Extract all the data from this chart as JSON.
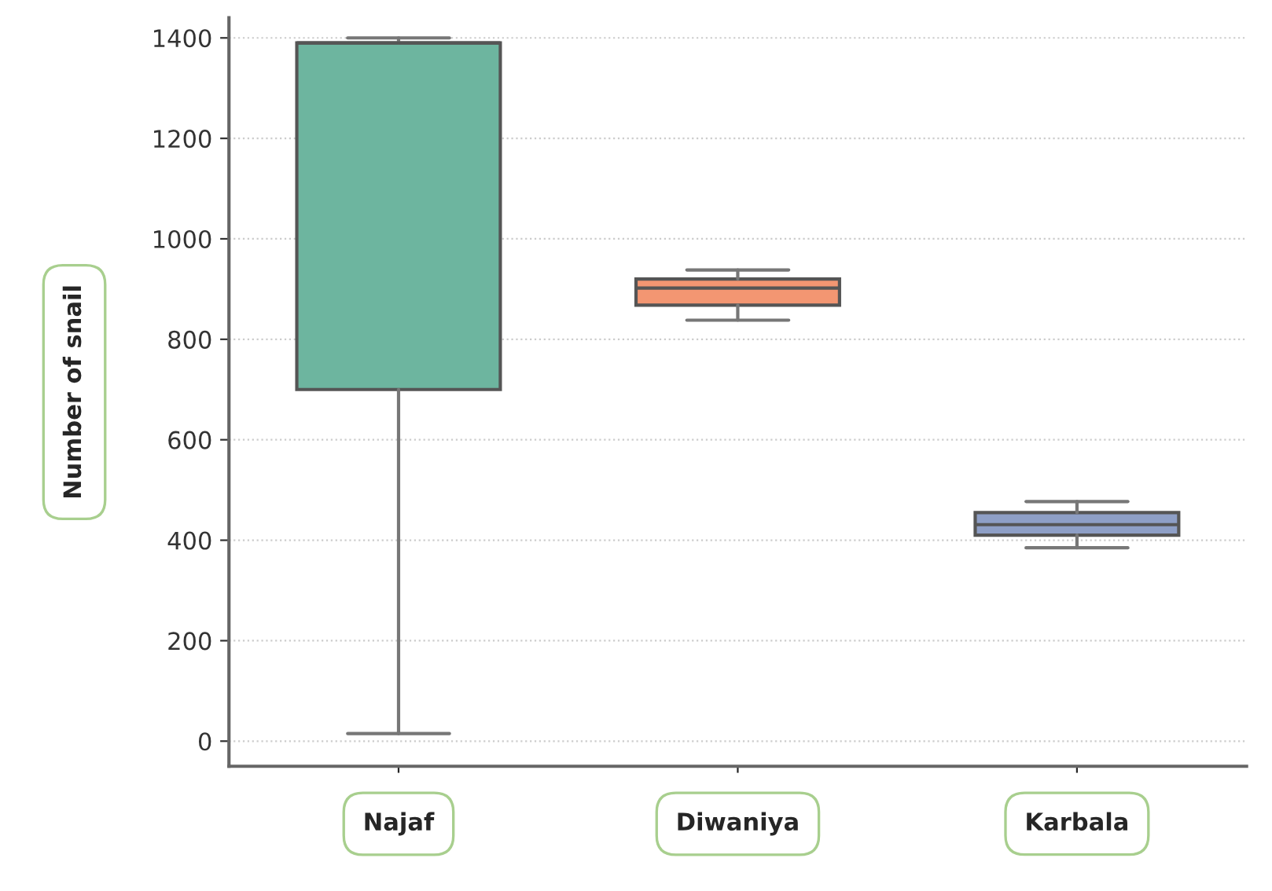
{
  "chart_data": {
    "type": "box",
    "ylabel": "Number of snail",
    "categories": [
      "Najaf",
      "Diwaniya",
      "Karbala"
    ],
    "boxes": [
      {
        "low": 15,
        "q1": 700,
        "median": 1390,
        "q3": 1390,
        "high": 1400
      },
      {
        "low": 838,
        "q1": 868,
        "median": 902,
        "q3": 920,
        "high": 938
      },
      {
        "low": 385,
        "q1": 410,
        "median": 431,
        "q3": 455,
        "high": 477
      }
    ],
    "colors": [
      "#6db59f",
      "#f39672",
      "#8e9fc6"
    ],
    "ylim": [
      -50,
      1440
    ],
    "yticks": [
      0,
      200,
      400,
      600,
      800,
      1000,
      1200,
      1400
    ],
    "grid": "y"
  }
}
